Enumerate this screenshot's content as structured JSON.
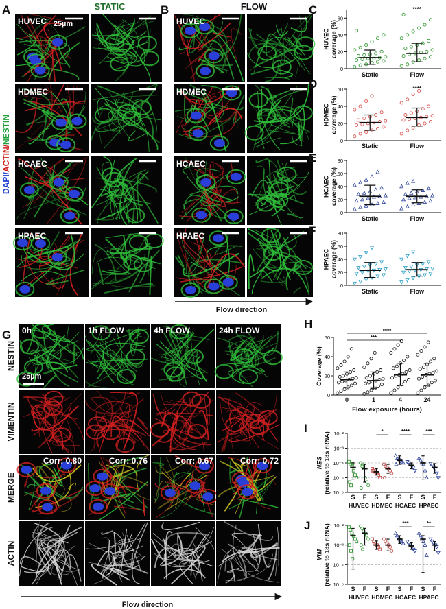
{
  "figure": {
    "panels": [
      "A",
      "B",
      "G"
    ],
    "a_title": "STATIC",
    "b_title": "FLOW",
    "cell_lines": [
      "HUVEC",
      "HDMEC",
      "HCAEC",
      "HPAEC"
    ],
    "scale_bar": "25µm",
    "stains": [
      "DAPI/",
      "ACTIN/",
      "NESTIN"
    ],
    "flow_direction": "Flow direction",
    "g": {
      "columns": [
        "0h",
        "1h FLOW",
        "4h FLOW",
        "24h FLOW"
      ],
      "rows": [
        "NESTIN",
        "VIMENTIN",
        "MERGE",
        "ACTIN"
      ],
      "correlations": [
        "Corr: 0.80",
        "Corr: 0.76",
        "Corr: 0.67",
        "Corr: 0.72"
      ],
      "scale_bar": "25µm",
      "flow_direction": "Flow direction"
    }
  },
  "chart_data": [
    {
      "panel": "C",
      "type": "strip",
      "ylabel": [
        "HUVEC",
        "coverage (%)"
      ],
      "categories": [
        "Static",
        "Flow"
      ],
      "color": "#3a9a3a",
      "marker": "circle",
      "ylim": [
        0,
        70
      ],
      "yticks": [
        0,
        20,
        40,
        60
      ],
      "significance": "****",
      "points": [
        [
          2,
          4,
          5,
          7,
          8,
          9,
          10,
          11,
          12,
          12,
          13,
          14,
          15,
          16,
          17,
          18,
          20,
          22,
          25,
          28,
          32,
          36,
          40,
          45
        ],
        [
          3,
          5,
          8,
          10,
          12,
          14,
          15,
          17,
          18,
          19,
          20,
          22,
          24,
          26,
          28,
          30,
          33,
          36,
          40,
          44,
          48,
          52,
          58,
          64
        ]
      ],
      "means": [
        13,
        18
      ],
      "errors": [
        [
          5,
          22
        ],
        [
          8,
          30
        ]
      ]
    },
    {
      "panel": "D",
      "type": "strip",
      "ylabel": [
        "HDMEC",
        "coverage (%)"
      ],
      "categories": [
        "Static",
        "Flow"
      ],
      "color": "#d9534f",
      "marker": "circle",
      "ylim": [
        0,
        60
      ],
      "yticks": [
        0,
        20,
        40,
        60
      ],
      "significance": "****",
      "points": [
        [
          5,
          8,
          10,
          12,
          14,
          16,
          18,
          19,
          20,
          21,
          22,
          23,
          24,
          26,
          28,
          30,
          33,
          36,
          40,
          46,
          52
        ],
        [
          8,
          12,
          15,
          18,
          20,
          22,
          24,
          25,
          26,
          27,
          28,
          29,
          30,
          32,
          34,
          37,
          40,
          44,
          48,
          54,
          58
        ]
      ],
      "means": [
        21,
        27
      ],
      "errors": [
        [
          12,
          30
        ],
        [
          17,
          38
        ]
      ]
    },
    {
      "panel": "E",
      "type": "strip",
      "ylabel": [
        "HCAEC",
        "coverage (%)"
      ],
      "categories": [
        "Static",
        "Flow"
      ],
      "color": "#3a4fa0",
      "marker": "triangle",
      "ylim": [
        0,
        80
      ],
      "yticks": [
        0,
        20,
        40,
        60,
        80
      ],
      "points": [
        [
          5,
          8,
          10,
          12,
          14,
          16,
          18,
          20,
          22,
          24,
          25,
          26,
          28,
          30,
          32,
          35,
          38,
          42,
          46,
          50,
          55,
          62
        ],
        [
          6,
          9,
          12,
          14,
          16,
          18,
          20,
          22,
          23,
          24,
          25,
          26,
          28,
          30,
          32,
          34,
          37,
          40,
          45,
          48
        ]
      ],
      "means": [
        25,
        25
      ],
      "errors": [
        [
          12,
          42
        ],
        [
          15,
          35
        ]
      ]
    },
    {
      "panel": "F",
      "type": "strip",
      "ylabel": [
        "HPAEC",
        "coverage (%)"
      ],
      "categories": [
        "Static",
        "Flow"
      ],
      "color": "#3aa6c9",
      "marker": "triangle-down",
      "ylim": [
        0,
        80
      ],
      "yticks": [
        0,
        20,
        40,
        60,
        80
      ],
      "points": [
        [
          3,
          6,
          9,
          12,
          14,
          16,
          18,
          20,
          22,
          23,
          24,
          25,
          27,
          29,
          31,
          33,
          36,
          40,
          44,
          50,
          58
        ],
        [
          5,
          8,
          11,
          14,
          16,
          18,
          20,
          22,
          23,
          24,
          25,
          26,
          27,
          29,
          31,
          33,
          36,
          40,
          45,
          52
        ]
      ],
      "means": [
        23,
        24
      ],
      "errors": [
        [
          12,
          35
        ],
        [
          14,
          35
        ]
      ]
    },
    {
      "panel": "H",
      "type": "strip",
      "ylabel": [
        "Coverage (%)"
      ],
      "xlabel": "Flow exposure (hours)",
      "categories": [
        "0",
        "1",
        "4",
        "24"
      ],
      "color": "#222222",
      "marker": "circle",
      "ylim": [
        0,
        60
      ],
      "yticks": [
        0,
        20,
        40,
        60
      ],
      "brackets": [
        {
          "label": "***",
          "from": "0",
          "to": "4"
        },
        {
          "label": "****",
          "from": "0",
          "to": "24"
        }
      ],
      "points": [
        [
          2,
          4,
          6,
          8,
          10,
          12,
          13,
          14,
          15,
          16,
          17,
          18,
          19,
          20,
          22,
          24,
          26,
          28,
          31,
          35,
          40,
          48
        ],
        [
          1,
          3,
          5,
          7,
          9,
          11,
          12,
          13,
          14,
          15,
          16,
          17,
          18,
          20,
          22,
          24,
          26,
          29,
          33,
          38,
          44
        ],
        [
          2,
          5,
          8,
          11,
          14,
          16,
          18,
          20,
          21,
          22,
          24,
          26,
          28,
          30,
          33,
          36,
          40,
          44,
          48,
          52,
          56
        ],
        [
          2,
          5,
          8,
          10,
          13,
          15,
          17,
          19,
          21,
          22,
          23,
          25,
          27,
          29,
          32,
          35,
          38,
          42,
          46,
          50,
          55
        ]
      ],
      "means": [
        16,
        15,
        21,
        21
      ],
      "errors": [
        [
          8,
          24
        ],
        [
          7,
          24
        ],
        [
          10,
          33
        ],
        [
          10,
          33
        ]
      ]
    },
    {
      "panel": "I",
      "type": "strip",
      "log": true,
      "grid": true,
      "ylabel": [
        "NES",
        "(relative to 18s rRNA)"
      ],
      "categories": [
        "S",
        "F",
        "S",
        "F",
        "S",
        "F",
        "S",
        "F"
      ],
      "groups": [
        "HUVEC",
        "HDMEC",
        "HCAEC",
        "HPAEC"
      ],
      "colors": [
        "#3a9a3a",
        "#3a9a3a",
        "#c0504d",
        "#c0504d",
        "#3a4fa0",
        "#3a4fa0",
        "#3a4fa0",
        "#3a4fa0"
      ],
      "markers": [
        "square",
        "circle",
        "square",
        "circle",
        "triangle",
        "triangle-down",
        "triangle",
        "triangle-down"
      ],
      "ylim": [
        1e-06,
        0.01
      ],
      "yticks": [
        {
          "value": 1e-06,
          "label": "10⁻⁶"
        },
        {
          "value": 1e-05,
          "label": "10⁻⁵"
        },
        {
          "value": 0.0001,
          "label": "10⁻⁴"
        },
        {
          "value": 0.001,
          "label": "10⁻³"
        },
        {
          "value": 0.01,
          "label": "10⁻²"
        }
      ],
      "significance": [
        {
          "label": "*",
          "group": "HDMEC"
        },
        {
          "label": "****",
          "group": "HCAEC"
        },
        {
          "label": "***",
          "group": "HPAEC"
        }
      ],
      "points": [
        [
          0.00012,
          8e-05,
          6e-05,
          3e-05,
          1.5e-05,
          1e-05,
          5e-06,
          3e-06,
          9e-05
        ],
        [
          0.0001,
          6e-05,
          4e-05,
          1e-05,
          5e-06,
          3e-06,
          2e-06,
          8e-05
        ],
        [
          4e-05,
          3e-05,
          2.5e-05,
          2e-05,
          1.5e-05,
          1e-05,
          3e-05
        ],
        [
          8e-05,
          6e-05,
          5e-05,
          4e-05,
          3e-05,
          2e-05,
          1e-05
        ],
        [
          0.0003,
          0.0002,
          0.00018,
          0.00015,
          0.00012,
          0.0001,
          8e-05
        ],
        [
          0.00012,
          0.0001,
          8e-05,
          6e-05,
          5e-05,
          3e-05
        ],
        [
          0.0002,
          0.00015,
          0.0001,
          8e-05,
          3e-05,
          1e-05
        ],
        [
          9e-05,
          7e-05,
          5e-05,
          4e-05,
          2e-05,
          1e-05
        ]
      ],
      "means": [
        5e-05,
        4e-05,
        2.5e-05,
        4e-05,
        0.00015,
        7e-05,
        0.0001,
        5e-05
      ],
      "errors": [
        [
          8e-06,
          0.0001
        ],
        [
          5e-06,
          8e-05
        ],
        [
          1.5e-05,
          4e-05
        ],
        [
          2e-05,
          8e-05
        ],
        [
          8e-05,
          0.0003
        ],
        [
          4e-05,
          0.0001
        ],
        [
          8e-06,
          0.0003
        ],
        [
          2e-05,
          9e-05
        ]
      ]
    },
    {
      "panel": "J",
      "type": "strip",
      "log": true,
      "grid": true,
      "ylabel": [
        "VIM",
        "(relative to 18s rRNA)"
      ],
      "categories": [
        "S",
        "F",
        "S",
        "F",
        "S",
        "F",
        "S",
        "F"
      ],
      "groups": [
        "HUVEC",
        "HDMEC",
        "HCAEC",
        "HPAEC"
      ],
      "colors": [
        "#3a9a3a",
        "#3a9a3a",
        "#c0504d",
        "#c0504d",
        "#3a4fa0",
        "#3a4fa0",
        "#3a4fa0",
        "#3a4fa0"
      ],
      "markers": [
        "square",
        "circle",
        "square",
        "circle",
        "triangle",
        "triangle-down",
        "triangle",
        "triangle-down"
      ],
      "ylim": [
        1e-05,
        0.01
      ],
      "yticks": [
        {
          "value": 1e-05,
          "label": "10⁻⁵"
        },
        {
          "value": 0.0001,
          "label": "10⁻⁴"
        },
        {
          "value": 0.001,
          "label": "10⁻³"
        },
        {
          "value": 0.01,
          "label": "10⁻²"
        }
      ],
      "significance": [
        {
          "label": "***",
          "group": "HCAEC"
        },
        {
          "label": "**",
          "group": "HPAEC"
        }
      ],
      "points": [
        [
          0.008,
          0.006,
          0.004,
          0.003,
          0.002,
          0.0015,
          0.001,
          0.0005,
          0.0002
        ],
        [
          0.009,
          0.007,
          0.005,
          0.004,
          0.003,
          0.002,
          0.001,
          0.0006
        ],
        [
          0.002,
          0.0015,
          0.0012,
          0.001,
          0.0008,
          0.0006
        ],
        [
          0.002,
          0.0015,
          0.0012,
          0.001,
          0.0008,
          0.0005
        ],
        [
          0.004,
          0.003,
          0.002,
          0.0018,
          0.0015,
          0.0012
        ],
        [
          0.0015,
          0.0012,
          0.001,
          0.0008,
          0.0006,
          0.0005
        ],
        [
          0.004,
          0.003,
          0.002,
          0.0015,
          0.001,
          0.0003
        ],
        [
          0.002,
          0.0015,
          0.0012,
          0.001,
          0.0008,
          0.0004
        ]
      ],
      "means": [
        0.003,
        0.004,
        0.001,
        0.001,
        0.002,
        0.0009,
        0.002,
        0.001
      ],
      "errors": [
        [
          6e-05,
          0.007
        ],
        [
          0.001,
          0.007
        ],
        [
          0.0006,
          0.0016
        ],
        [
          0.0005,
          0.002
        ],
        [
          0.0012,
          0.003
        ],
        [
          0.0006,
          0.0013
        ],
        [
          4e-05,
          0.003
        ],
        [
          0.0005,
          0.0015
        ]
      ]
    }
  ]
}
